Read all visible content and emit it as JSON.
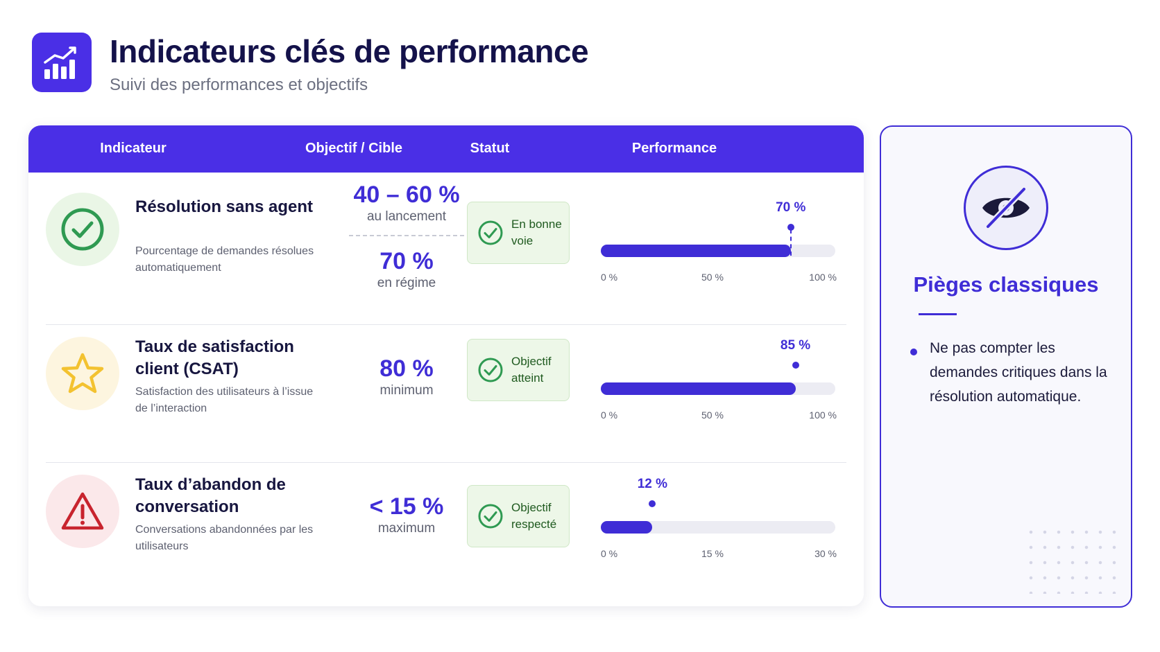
{
  "header": {
    "title": "Indicateurs clés de performance",
    "subtitle": "Suivi des performances et objectifs",
    "logo_icon": "bar-chart-growth-icon"
  },
  "table": {
    "columns": [
      "Indicateur",
      "Objectif / Cible",
      "Statut",
      "Performance"
    ],
    "rows": [
      {
        "icon": "check-circle-icon",
        "title": "Résolution sans agent",
        "description": "Pourcentage de demandes résolues automatiquement",
        "target_value": "40 – 60 %",
        "target_label": "au lancement",
        "target_value_2": "70 %",
        "target_label_2": "en régime",
        "status": "En bonne voie",
        "performance": {
          "value_label": "70 %",
          "value": 70,
          "marker": 0.81,
          "ticks": [
            "0 %",
            "50 %",
            "100 %"
          ]
        }
      },
      {
        "icon": "star-icon",
        "title": "Taux de satisfaction client (CSAT)",
        "description": "Satisfaction des utilisateurs à l’issue de l’interaction",
        "target_value": "80 %",
        "target_label": "minimum",
        "status": "Objectif atteint",
        "performance": {
          "value_label": "85 %",
          "value": 85,
          "marker": 0.83,
          "ticks": [
            "0 %",
            "50 %",
            "100 %"
          ]
        }
      },
      {
        "icon": "warning-triangle-icon",
        "title": "Taux d’abandon de conversation",
        "description": "Conversations abandonnées par les utilisateurs",
        "target_value": "< 15 %",
        "target_label": "maximum",
        "status": "Objectif respecté",
        "performance": {
          "value_label": "12 %",
          "value": 12,
          "marker": 0.22,
          "ticks": [
            "0 %",
            "15 %",
            "30 %"
          ]
        }
      }
    ]
  },
  "sidebar": {
    "icon": "eye-slash-icon",
    "title": "Pièges classiques",
    "bullets": [
      "Ne pas compter les demandes critiques dans la résolution automatique."
    ]
  },
  "colors": {
    "accent": "#3f2dd6",
    "header_bg": "#4a2fe6",
    "status_bg": "#edf7e8",
    "success": "#2f9a52",
    "star": "#f3c230",
    "warning": "#c8242e"
  }
}
